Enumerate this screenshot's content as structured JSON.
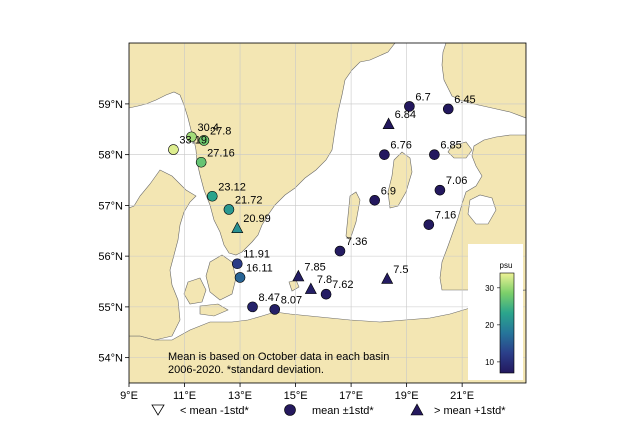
{
  "map": {
    "lon_ticks": [
      {
        "value": 9,
        "label": "9°E"
      },
      {
        "value": 11,
        "label": "11°E"
      },
      {
        "value": 13,
        "label": "13°E"
      },
      {
        "value": 15,
        "label": "15°E"
      },
      {
        "value": 17,
        "label": "17°E"
      },
      {
        "value": 19,
        "label": "19°E"
      },
      {
        "value": 21,
        "label": "21°E"
      }
    ],
    "lat_ticks": [
      {
        "value": 54,
        "label": "54°N"
      },
      {
        "value": 55,
        "label": "55°N"
      },
      {
        "value": 56,
        "label": "56°N"
      },
      {
        "value": 57,
        "label": "57°N"
      },
      {
        "value": 58,
        "label": "58°N"
      },
      {
        "value": 59,
        "label": "59°N"
      }
    ],
    "land_color": "#f3e6b3",
    "water_color": "#ffffff",
    "annotation": {
      "line1": "Mean is based on October data in each basin",
      "line2": "2006-2020. *standard deviation."
    },
    "colorbar": {
      "label": "psu",
      "ticks": [
        {
          "value": 10,
          "label": "10"
        },
        {
          "value": 20,
          "label": "20"
        },
        {
          "value": 30,
          "label": "30"
        }
      ],
      "vmin": 7,
      "vmax": 34
    }
  },
  "legend": {
    "below": "< mean -1std*",
    "mean": "mean ±1std*",
    "above": "> mean +1std*"
  },
  "chart_data": {
    "type": "scatter",
    "x_unit": "degrees longitude E",
    "y_unit": "degrees latitude N",
    "xlim": [
      9,
      23.3
    ],
    "ylim": [
      53.5,
      60.2
    ],
    "color_unit": "psu",
    "points": [
      {
        "lon": 10.6,
        "lat": 58.1,
        "value": "33.19",
        "v": 33.19,
        "marker": "circle"
      },
      {
        "lon": 11.25,
        "lat": 58.35,
        "value": "30.4",
        "v": 30.4,
        "marker": "circle"
      },
      {
        "lon": 11.7,
        "lat": 58.28,
        "value": "27.8",
        "v": 27.8,
        "marker": "circle"
      },
      {
        "lon": 11.6,
        "lat": 57.85,
        "value": "27.16",
        "v": 27.16,
        "marker": "circle"
      },
      {
        "lon": 12.0,
        "lat": 57.18,
        "value": "23.12",
        "v": 23.12,
        "marker": "circle"
      },
      {
        "lon": 12.6,
        "lat": 56.92,
        "value": "21.72",
        "v": 21.72,
        "marker": "circle"
      },
      {
        "lon": 12.9,
        "lat": 56.55,
        "value": "20.99",
        "v": 20.99,
        "marker": "triangle-up"
      },
      {
        "lon": 12.9,
        "lat": 55.85,
        "value": "11.91",
        "v": 11.91,
        "marker": "circle"
      },
      {
        "lon": 13.0,
        "lat": 55.58,
        "value": "16.11",
        "v": 16.11,
        "marker": "circle"
      },
      {
        "lon": 13.45,
        "lat": 55.0,
        "value": "8.47",
        "v": 8.47,
        "marker": "circle"
      },
      {
        "lon": 14.25,
        "lat": 54.95,
        "value": "8.07",
        "v": 8.07,
        "marker": "circle"
      },
      {
        "lon": 15.1,
        "lat": 55.6,
        "value": "7.85",
        "v": 7.85,
        "marker": "triangle-up"
      },
      {
        "lon": 15.55,
        "lat": 55.35,
        "value": "7.8",
        "v": 7.8,
        "marker": "triangle-up"
      },
      {
        "lon": 16.1,
        "lat": 55.25,
        "value": "7.62",
        "v": 7.62,
        "marker": "circle"
      },
      {
        "lon": 16.6,
        "lat": 56.1,
        "value": "7.36",
        "v": 7.36,
        "marker": "circle"
      },
      {
        "lon": 18.3,
        "lat": 55.55,
        "value": "7.5",
        "v": 7.5,
        "marker": "triangle-up"
      },
      {
        "lon": 17.85,
        "lat": 57.1,
        "value": "6.9",
        "v": 6.9,
        "marker": "circle"
      },
      {
        "lon": 18.2,
        "lat": 58.0,
        "value": "6.76",
        "v": 6.76,
        "marker": "circle"
      },
      {
        "lon": 18.35,
        "lat": 58.6,
        "value": "6.84",
        "v": 6.84,
        "marker": "triangle-up"
      },
      {
        "lon": 19.1,
        "lat": 58.95,
        "value": "6.7",
        "v": 6.7,
        "marker": "circle"
      },
      {
        "lon": 20.5,
        "lat": 58.9,
        "value": "6.45",
        "v": 6.45,
        "marker": "circle"
      },
      {
        "lon": 20.0,
        "lat": 58.0,
        "value": "6.85",
        "v": 6.85,
        "marker": "circle"
      },
      {
        "lon": 20.2,
        "lat": 57.3,
        "value": "7.06",
        "v": 7.06,
        "marker": "circle"
      },
      {
        "lon": 19.8,
        "lat": 56.62,
        "value": "7.16",
        "v": 7.16,
        "marker": "circle"
      }
    ]
  }
}
